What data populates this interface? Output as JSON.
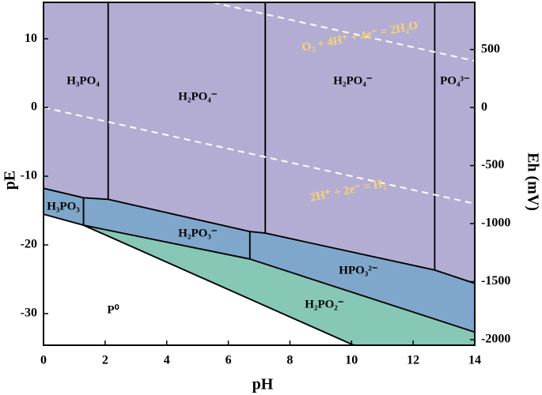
{
  "chart_data": {
    "type": "phase",
    "x_label": "pH",
    "y_label": "pE",
    "y2_label": "Eh (mV)",
    "xlim": [
      0,
      14
    ],
    "xticks": [
      0,
      2,
      4,
      6,
      8,
      10,
      12,
      14
    ],
    "ylim": [
      -34.6,
      15.3
    ],
    "yticks": [
      -30,
      -20,
      -10,
      0,
      10
    ],
    "y2lim": [
      -2048,
      906
    ],
    "y2ticks": [
      -2000,
      -1500,
      -1000,
      -500,
      0,
      500
    ],
    "regions": [
      {
        "label": "H₃PO₄",
        "color": "#b4add3",
        "x": [
          0,
          2.1,
          2.1,
          1.3,
          0
        ],
        "y": [
          15.3,
          15.3,
          -13.37,
          -13.14,
          -11.77
        ]
      },
      {
        "label": "H₂PO₄⁻",
        "color": "#b4add3",
        "x": [
          2.1,
          7.2,
          7.2,
          6.7,
          2.1
        ],
        "y": [
          15.3,
          15.3,
          -18.29,
          -18.06,
          -13.37
        ]
      },
      {
        "label": "H₂PO₄⁻",
        "color": "#b4add3",
        "x": [
          7.2,
          12.7,
          12.7,
          7.2
        ],
        "y": [
          15.3,
          15.3,
          -23.66,
          -18.29
        ]
      },
      {
        "label": "PO₄³⁻",
        "color": "#b4add3",
        "x": [
          12.7,
          14,
          14,
          12.7
        ],
        "y": [
          15.3,
          15.3,
          -25.6,
          -23.66
        ]
      },
      {
        "label": "H₃PO₃",
        "color": "#7fa7cb",
        "x": [
          0,
          1.3,
          1.3,
          0
        ],
        "y": [
          -11.77,
          -13.14,
          -17.14,
          -15.54
        ]
      },
      {
        "label": "H₂PO₃⁻",
        "color": "#7fa7cb",
        "x": [
          1.3,
          2.1,
          6.7,
          6.7,
          1.3
        ],
        "y": [
          -13.14,
          -13.37,
          -18.06,
          -22.06,
          -17.14
        ]
      },
      {
        "label": "HPO₃²⁻",
        "color": "#7fa7cb",
        "x": [
          6.7,
          7.2,
          12.7,
          14,
          14,
          6.7
        ],
        "y": [
          -18.06,
          -18.29,
          -23.66,
          -25.6,
          -32.69,
          -22.06
        ]
      },
      {
        "label": "H₂PO₂⁻",
        "color": "#86c7b5",
        "x": [
          1.3,
          6.7,
          14,
          14,
          10.07
        ],
        "y": [
          -17.14,
          -22.06,
          -32.69,
          -34.6,
          -34.6
        ]
      },
      {
        "label": "P⁰",
        "color": "#ffffff",
        "x": [
          0,
          1.3,
          10.07,
          0
        ],
        "y": [
          -15.54,
          -17.14,
          -34.6,
          -34.6
        ]
      }
    ],
    "water_lines": [
      {
        "label": "O₂ + 4H⁺ + 4e⁻ = 2H₂O",
        "color": "#ffffff",
        "x": [
          5.5,
          14
        ],
        "y": [
          15.28,
          6.78
        ]
      },
      {
        "label": "2H⁺ + 2e⁻ = H₂",
        "color": "#ffffff",
        "x": [
          0,
          14
        ],
        "y": [
          0,
          -14
        ]
      }
    ]
  }
}
